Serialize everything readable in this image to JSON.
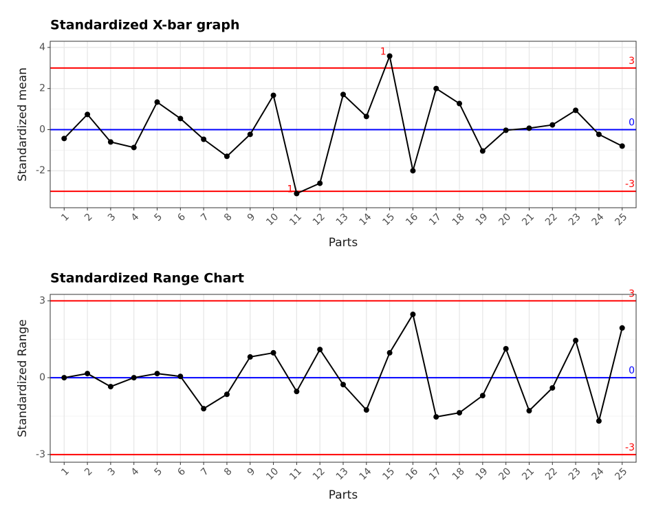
{
  "chart_data": [
    {
      "type": "line",
      "title": "Standardized X-bar graph",
      "xlabel": "Parts",
      "ylabel": "Standardized mean",
      "x": [
        1,
        2,
        3,
        4,
        5,
        6,
        7,
        8,
        9,
        10,
        11,
        12,
        13,
        14,
        15,
        16,
        17,
        18,
        19,
        20,
        21,
        22,
        23,
        24,
        25
      ],
      "values": [
        -0.43,
        0.74,
        -0.6,
        -0.87,
        1.34,
        0.54,
        -0.47,
        -1.3,
        -0.23,
        1.67,
        -3.11,
        -2.61,
        1.71,
        0.64,
        3.58,
        -2.0,
        2.0,
        1.27,
        -1.04,
        -0.03,
        0.07,
        0.23,
        0.94,
        -0.23,
        -0.8
      ],
      "color": "#000000",
      "xlim": [
        0.4,
        25.6
      ],
      "xticks": [
        1,
        2,
        3,
        4,
        5,
        6,
        7,
        8,
        9,
        10,
        11,
        12,
        13,
        14,
        15,
        16,
        17,
        18,
        19,
        20,
        21,
        22,
        23,
        24,
        25
      ],
      "ylim": [
        -3.8,
        4.3
      ],
      "yticks": [
        -2,
        0,
        2,
        4
      ],
      "grid": true,
      "hlines": [
        {
          "value": 3,
          "color": "#ff0000"
        },
        {
          "value": 0,
          "color": "#0000ff"
        },
        {
          "value": -3,
          "color": "#ff0000"
        }
      ],
      "annotations": [
        {
          "x": 15,
          "text": "1",
          "color": "#ff0000"
        },
        {
          "x": 11,
          "text": "1",
          "color": "#ff0000"
        }
      ]
    },
    {
      "type": "line",
      "title": "Standardized Range Chart",
      "xlabel": "Parts",
      "ylabel": "Standardized Range",
      "x": [
        1,
        2,
        3,
        4,
        5,
        6,
        7,
        8,
        9,
        10,
        11,
        12,
        13,
        14,
        15,
        16,
        17,
        18,
        19,
        20,
        21,
        22,
        23,
        24,
        25
      ],
      "values": [
        0,
        0.16,
        -0.35,
        0,
        0.16,
        0.05,
        -1.21,
        -0.65,
        0.81,
        0.97,
        -0.54,
        1.1,
        -0.27,
        -1.26,
        0.97,
        2.47,
        -1.53,
        -1.37,
        -0.7,
        1.13,
        -1.29,
        -0.4,
        1.45,
        -1.69,
        1.94
      ],
      "color": "#000000",
      "xlim": [
        0.4,
        25.6
      ],
      "xticks": [
        1,
        2,
        3,
        4,
        5,
        6,
        7,
        8,
        9,
        10,
        11,
        12,
        13,
        14,
        15,
        16,
        17,
        18,
        19,
        20,
        21,
        22,
        23,
        24,
        25
      ],
      "ylim": [
        -3.3,
        3.25
      ],
      "yticks": [
        -3,
        0,
        3
      ],
      "grid": true,
      "hlines": [
        {
          "value": 3,
          "color": "#ff0000"
        },
        {
          "value": 0,
          "color": "#0000ff"
        },
        {
          "value": -3,
          "color": "#ff0000"
        }
      ],
      "annotations": []
    }
  ]
}
